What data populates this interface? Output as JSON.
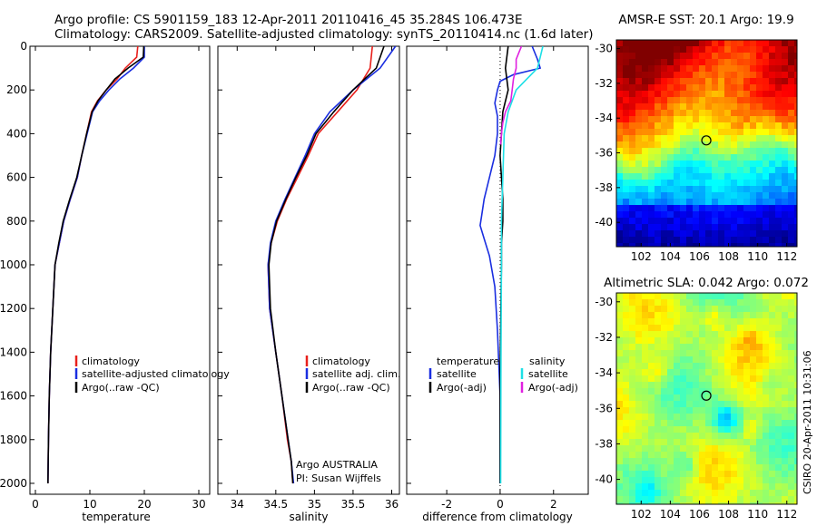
{
  "header": {
    "line1": "Argo profile: CS 5901159_183 12-Apr-2011 20110416_45 35.284S 106.473E",
    "line2": "Climatology: CARS2009. Satellite-adjusted climatology: synTS_20110414.nc (1.6d later)"
  },
  "colors": {
    "climatology": "#e8201c",
    "satellite": "#1a2ee0",
    "argo": "#000000",
    "salinity_satellite": "#1ee0e6",
    "salinity_argo": "#e020e0"
  },
  "credit": "Argo AUSTRALIA",
  "pi": "PI: Susan Wijffels",
  "side_label": "CSIRO 20-Apr-2011 10:31:06",
  "chart_data": [
    {
      "type": "line",
      "title": "",
      "xlabel": "temperature",
      "ylabel": "",
      "xlim": [
        -1,
        32
      ],
      "ylim": [
        2050,
        0
      ],
      "xticks": [
        0,
        10,
        20,
        30
      ],
      "yticks": [
        0,
        200,
        400,
        600,
        800,
        1000,
        1200,
        1400,
        1600,
        1800,
        2000
      ],
      "legend": [
        "climatology",
        "satellite-adjusted climatology",
        "Argo(..raw -QC)"
      ],
      "legend_position": "lower-right",
      "series": [
        {
          "name": "climatology",
          "color": "red",
          "x": [
            18.8,
            18.6,
            16.5,
            15.0,
            13.0,
            11.4,
            10.3,
            9.4,
            8.5,
            7.7,
            6.4,
            5.2,
            4.4,
            3.6,
            3.2,
            2.8,
            2.55,
            2.4,
            2.3
          ],
          "y": [
            0,
            50,
            100,
            150,
            200,
            250,
            300,
            400,
            500,
            600,
            700,
            800,
            900,
            1000,
            1200,
            1400,
            1600,
            1800,
            2000
          ]
        },
        {
          "name": "satellite-adjusted climatology",
          "color": "blue",
          "x": [
            20.0,
            20.0,
            18.0,
            15.5,
            13.5,
            11.8,
            10.5,
            9.5,
            8.5,
            7.7,
            6.4,
            5.2,
            4.4,
            3.6,
            3.2,
            2.8,
            2.55,
            2.4,
            2.3
          ],
          "y": [
            0,
            50,
            100,
            150,
            200,
            250,
            300,
            400,
            500,
            600,
            700,
            800,
            900,
            1000,
            1200,
            1400,
            1600,
            1800,
            2000
          ]
        },
        {
          "name": "Argo(..raw -QC)",
          "color": "black",
          "x": [
            19.9,
            19.8,
            17.0,
            14.6,
            13.0,
            11.5,
            10.4,
            9.4,
            8.5,
            7.6,
            6.3,
            5.1,
            4.3,
            3.6,
            3.2,
            2.8,
            2.55,
            2.4,
            2.3
          ],
          "y": [
            0,
            50,
            100,
            150,
            200,
            250,
            300,
            400,
            500,
            600,
            700,
            800,
            900,
            1000,
            1200,
            1400,
            1600,
            1800,
            2000
          ]
        }
      ]
    },
    {
      "type": "line",
      "title": "",
      "xlabel": "salinity",
      "ylabel": "",
      "xlim": [
        33.75,
        36.1
      ],
      "ylim": [
        2050,
        0
      ],
      "xticks": [
        34,
        34.5,
        35,
        35.5,
        36
      ],
      "legend": [
        "climatology",
        "satellite adj. clim.",
        "Argo(..raw -QC)"
      ],
      "legend_position": "lower-right",
      "series": [
        {
          "name": "climatology",
          "color": "red",
          "x": [
            35.75,
            35.72,
            35.55,
            35.3,
            35.05,
            34.92,
            34.78,
            34.64,
            34.52,
            34.44,
            34.4,
            34.42,
            34.5,
            34.58,
            34.65,
            34.7,
            34.72
          ],
          "y": [
            0,
            100,
            200,
            300,
            400,
            500,
            600,
            700,
            800,
            900,
            1000,
            1200,
            1400,
            1600,
            1800,
            1900,
            2000
          ]
        },
        {
          "name": "satellite adj. clim.",
          "color": "blue",
          "x": [
            36.05,
            35.85,
            35.5,
            35.2,
            35.0,
            34.88,
            34.75,
            34.62,
            34.5,
            34.43,
            34.4,
            34.42,
            34.5,
            34.58,
            34.66,
            34.7,
            34.73
          ],
          "y": [
            0,
            100,
            200,
            300,
            400,
            500,
            600,
            700,
            800,
            900,
            1000,
            1200,
            1400,
            1600,
            1800,
            1900,
            2000
          ]
        },
        {
          "name": "Argo(..raw -QC)",
          "color": "black",
          "x": [
            35.9,
            35.8,
            35.5,
            35.25,
            35.02,
            34.9,
            34.76,
            34.63,
            34.51,
            34.44,
            34.41,
            34.43,
            34.5,
            34.58,
            34.66,
            34.7,
            34.72
          ],
          "y": [
            0,
            100,
            200,
            300,
            400,
            500,
            600,
            700,
            800,
            900,
            1000,
            1200,
            1400,
            1600,
            1800,
            1900,
            2000
          ]
        }
      ]
    },
    {
      "type": "line",
      "title": "",
      "xlabel": "difference from climatology",
      "ylabel": "",
      "xlim": [
        -3.5,
        3.3
      ],
      "ylim": [
        2050,
        0
      ],
      "xticks": [
        -2,
        0,
        2
      ],
      "legend": [
        "temperature",
        "satellite",
        "Argo(-adj)",
        "salinity",
        "satellite",
        "Argo(-adj)"
      ],
      "legend_position": "lower",
      "series": [
        {
          "name": "temperature satellite",
          "color": "blue",
          "x": [
            1.2,
            1.4,
            1.5,
            0.5,
            0.0,
            -0.1,
            -0.2,
            -0.1,
            -0.1,
            -0.2,
            -0.4,
            -0.6,
            -0.7,
            -0.75,
            -0.6,
            -0.4,
            -0.2,
            -0.1,
            0,
            0,
            0
          ],
          "y": [
            0,
            60,
            100,
            130,
            160,
            200,
            260,
            320,
            400,
            500,
            600,
            700,
            780,
            820,
            880,
            960,
            1100,
            1300,
            1600,
            1800,
            2000
          ]
        },
        {
          "name": "temperature Argo(-adj)",
          "color": "black",
          "x": [
            0.3,
            0.2,
            0.3,
            0.1,
            0.05,
            0,
            0.05,
            0.1,
            0.1,
            0.05,
            0.05,
            0,
            0
          ],
          "y": [
            0,
            100,
            200,
            300,
            400,
            500,
            600,
            700,
            800,
            900,
            1000,
            1500,
            2000
          ]
        },
        {
          "name": "salinity satellite",
          "color": "cyan",
          "x": [
            1.6,
            1.5,
            1.4,
            1.0,
            0.6,
            0.3,
            0.15,
            0.1,
            0.05,
            0.05,
            0.03,
            0.02
          ],
          "y": [
            0,
            50,
            100,
            150,
            200,
            300,
            400,
            600,
            800,
            1000,
            1500,
            2000
          ]
        },
        {
          "name": "salinity Argo(-adj)",
          "color": "magenta",
          "x": [
            0.8,
            0.7,
            0.6,
            0.6,
            0.5,
            0.45,
            0.4,
            0.2,
            0.1,
            0.05,
            0.02
          ],
          "y": [
            0,
            30,
            60,
            100,
            150,
            200,
            250,
            300,
            350,
            400,
            450
          ]
        }
      ]
    },
    {
      "type": "heatmap",
      "title": "AMSR-E SST: 20.1 Argo: 19.9",
      "xlim": [
        100.3,
        112.7
      ],
      "ylim": [
        -41.4,
        -29.5
      ],
      "xticks": [
        102,
        104,
        106,
        108,
        110,
        112
      ],
      "yticks": [
        -30,
        -32,
        -34,
        -36,
        -38,
        -40
      ],
      "marker": {
        "lon": 106.473,
        "lat": -35.284
      }
    },
    {
      "type": "heatmap",
      "title": "Altimetric SLA: 0.042 Argo: 0.072",
      "xlim": [
        100.3,
        112.7
      ],
      "ylim": [
        -41.4,
        -29.5
      ],
      "xticks": [
        102,
        104,
        106,
        108,
        110,
        112
      ],
      "yticks": [
        -30,
        -32,
        -34,
        -36,
        -38,
        -40
      ],
      "marker": {
        "lon": 106.473,
        "lat": -35.284
      }
    }
  ]
}
